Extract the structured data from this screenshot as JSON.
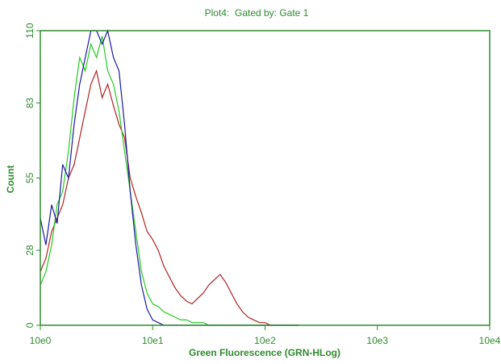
{
  "chart_data": {
    "type": "line",
    "title": "Plot4:  Gated by: Gate 1",
    "x_label": "Green Fluorescence (GRN-HLog)",
    "y_label": "Count",
    "x_scale": "log",
    "xlim": [
      1,
      10000
    ],
    "xticks": [
      {
        "value": 1,
        "label": "10e0"
      },
      {
        "value": 10,
        "label": "10e1"
      },
      {
        "value": 100,
        "label": "10e2"
      },
      {
        "value": 1000,
        "label": "10e3"
      },
      {
        "value": 10000,
        "label": "10e4"
      }
    ],
    "ylim": [
      0,
      110
    ],
    "yticks": [
      0,
      28,
      55,
      83,
      110
    ],
    "axis_color": "#2e8b2e",
    "x": [
      1,
      1.12,
      1.26,
      1.41,
      1.58,
      1.78,
      2,
      2.24,
      2.51,
      2.82,
      3.16,
      3.55,
      3.98,
      4.47,
      5.01,
      5.62,
      6.31,
      7.08,
      7.94,
      8.91,
      10,
      11.2,
      12.6,
      14.1,
      15.8,
      17.8,
      20,
      22.4,
      25.1,
      28.2,
      31.6,
      35.5,
      39.8,
      44.7,
      50.1,
      56.2,
      63.1,
      70.8,
      79.4,
      89.1,
      100,
      112,
      126,
      141,
      158,
      178,
      200
    ],
    "series": [
      {
        "color": "#b22222",
        "values": [
          20,
          25,
          35,
          40,
          45,
          55,
          60,
          70,
          80,
          90,
          95,
          85,
          90,
          82,
          75,
          70,
          55,
          48,
          42,
          35,
          32,
          28,
          22,
          18,
          14,
          11,
          9,
          8,
          10,
          12,
          15,
          17,
          19,
          16,
          12,
          8,
          5,
          3,
          2,
          1,
          1,
          0,
          0,
          0,
          0,
          0,
          0
        ]
      },
      {
        "color": "#22cc22",
        "values": [
          15,
          20,
          30,
          45,
          50,
          65,
          85,
          100,
          95,
          105,
          100,
          108,
          95,
          90,
          80,
          65,
          50,
          35,
          20,
          12,
          8,
          7,
          5,
          4,
          3,
          2,
          2,
          1,
          1,
          1,
          0,
          0,
          0,
          0,
          0,
          0,
          0,
          0,
          0,
          0,
          0,
          0,
          0,
          0,
          0,
          0,
          0
        ]
      },
      {
        "color": "#1a1aa0",
        "values": [
          40,
          30,
          45,
          38,
          60,
          55,
          75,
          90,
          100,
          110,
          110,
          105,
          110,
          100,
          95,
          75,
          50,
          30,
          15,
          6,
          2,
          1,
          0,
          0,
          0,
          0,
          0,
          0,
          0,
          0,
          0,
          0,
          0,
          0,
          0,
          0,
          0,
          0,
          0,
          0,
          0,
          0,
          0,
          0,
          0,
          0,
          0
        ]
      }
    ]
  }
}
